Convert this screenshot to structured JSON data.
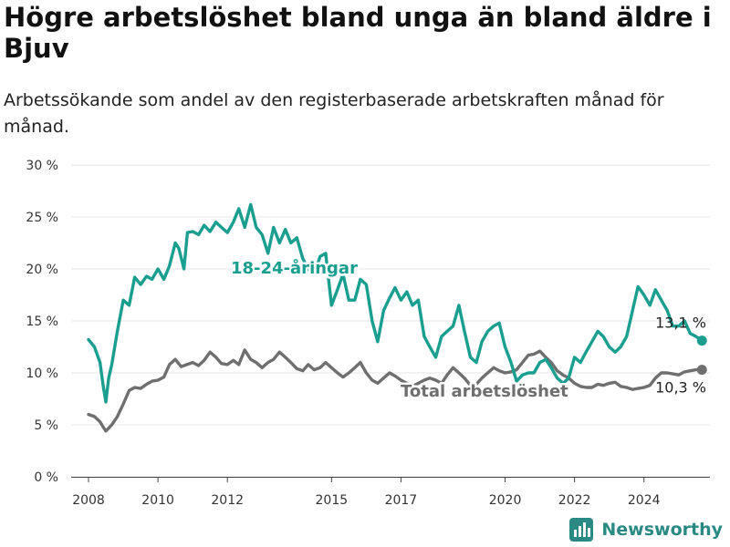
{
  "title": "Högre arbetslöshet bland unga än bland äldre i Bjuv",
  "subtitle": "Arbetssökande som andel av den registerbaserade arbetskraften månad för månad.",
  "brand": "Newsworthy",
  "colors": {
    "youth": "#1a9e8f",
    "total": "#6f6f6f",
    "brand": "#2a8a83"
  },
  "chart_data": {
    "type": "line",
    "ylim": [
      0,
      30
    ],
    "xlim": [
      2007.5,
      2025.9
    ],
    "yticks": [
      0,
      5,
      10,
      15,
      20,
      25,
      30
    ],
    "ytick_labels": [
      "0 %",
      "5 %",
      "10 %",
      "15 %",
      "20 %",
      "25 %",
      "30 %"
    ],
    "xticks": [
      2008,
      2010,
      2012,
      2015,
      2017,
      2020,
      2022,
      2024
    ],
    "xtick_labels": [
      "2008",
      "2010",
      "2012",
      "2015",
      "2017",
      "2020",
      "2022",
      "2024"
    ],
    "grid": true,
    "series": [
      {
        "name": "18-24-åringar",
        "color": "#1a9e8f",
        "end_label": "13,1 %",
        "points": [
          [
            2008.0,
            13.2
          ],
          [
            2008.17,
            12.5
          ],
          [
            2008.33,
            11.0
          ],
          [
            2008.42,
            8.8
          ],
          [
            2008.5,
            7.2
          ],
          [
            2008.58,
            9.5
          ],
          [
            2008.67,
            10.8
          ],
          [
            2008.83,
            14.0
          ],
          [
            2009.0,
            17.0
          ],
          [
            2009.17,
            16.5
          ],
          [
            2009.33,
            19.2
          ],
          [
            2009.5,
            18.5
          ],
          [
            2009.67,
            19.3
          ],
          [
            2009.83,
            19.0
          ],
          [
            2010.0,
            20.0
          ],
          [
            2010.17,
            19.0
          ],
          [
            2010.33,
            20.3
          ],
          [
            2010.5,
            22.5
          ],
          [
            2010.6,
            22.0
          ],
          [
            2010.75,
            20.0
          ],
          [
            2010.85,
            23.5
          ],
          [
            2011.0,
            23.6
          ],
          [
            2011.17,
            23.3
          ],
          [
            2011.33,
            24.2
          ],
          [
            2011.5,
            23.6
          ],
          [
            2011.67,
            24.5
          ],
          [
            2011.83,
            24.0
          ],
          [
            2012.0,
            23.5
          ],
          [
            2012.17,
            24.5
          ],
          [
            2012.33,
            25.8
          ],
          [
            2012.5,
            24.0
          ],
          [
            2012.67,
            26.2
          ],
          [
            2012.83,
            24.0
          ],
          [
            2013.0,
            23.3
          ],
          [
            2013.17,
            21.5
          ],
          [
            2013.33,
            24.0
          ],
          [
            2013.5,
            22.5
          ],
          [
            2013.67,
            23.8
          ],
          [
            2013.83,
            22.5
          ],
          [
            2014.0,
            23.0
          ],
          [
            2014.17,
            21.0
          ],
          [
            2014.33,
            20.0
          ],
          [
            2014.5,
            19.5
          ],
          [
            2014.67,
            21.2
          ],
          [
            2014.83,
            21.5
          ],
          [
            2015.0,
            16.5
          ],
          [
            2015.17,
            18.0
          ],
          [
            2015.33,
            19.5
          ],
          [
            2015.5,
            17.0
          ],
          [
            2015.67,
            17.0
          ],
          [
            2015.83,
            19.0
          ],
          [
            2016.0,
            18.5
          ],
          [
            2016.17,
            15.0
          ],
          [
            2016.33,
            13.0
          ],
          [
            2016.5,
            16.0
          ],
          [
            2016.67,
            17.2
          ],
          [
            2016.83,
            18.2
          ],
          [
            2017.0,
            17.0
          ],
          [
            2017.17,
            17.8
          ],
          [
            2017.33,
            16.5
          ],
          [
            2017.5,
            17.0
          ],
          [
            2017.67,
            13.5
          ],
          [
            2017.83,
            12.5
          ],
          [
            2018.0,
            11.5
          ],
          [
            2018.17,
            13.5
          ],
          [
            2018.33,
            14.0
          ],
          [
            2018.5,
            14.5
          ],
          [
            2018.67,
            16.5
          ],
          [
            2018.83,
            14.0
          ],
          [
            2019.0,
            11.5
          ],
          [
            2019.17,
            11.0
          ],
          [
            2019.33,
            13.0
          ],
          [
            2019.5,
            14.0
          ],
          [
            2019.67,
            14.5
          ],
          [
            2019.83,
            14.8
          ],
          [
            2020.0,
            12.5
          ],
          [
            2020.17,
            11.0
          ],
          [
            2020.33,
            9.2
          ],
          [
            2020.5,
            9.8
          ],
          [
            2020.67,
            10.0
          ],
          [
            2020.83,
            10.0
          ],
          [
            2021.0,
            11.0
          ],
          [
            2021.17,
            11.3
          ],
          [
            2021.33,
            10.5
          ],
          [
            2021.5,
            9.5
          ],
          [
            2021.67,
            9.0
          ],
          [
            2021.83,
            9.5
          ],
          [
            2022.0,
            11.5
          ],
          [
            2022.17,
            11.0
          ],
          [
            2022.33,
            12.0
          ],
          [
            2022.5,
            13.0
          ],
          [
            2022.67,
            14.0
          ],
          [
            2022.83,
            13.5
          ],
          [
            2023.0,
            12.5
          ],
          [
            2023.17,
            12.0
          ],
          [
            2023.33,
            12.5
          ],
          [
            2023.5,
            13.5
          ],
          [
            2023.67,
            16.0
          ],
          [
            2023.83,
            18.3
          ],
          [
            2024.0,
            17.5
          ],
          [
            2024.17,
            16.5
          ],
          [
            2024.33,
            18.0
          ],
          [
            2024.5,
            17.0
          ],
          [
            2024.67,
            16.0
          ],
          [
            2024.83,
            14.5
          ],
          [
            2025.0,
            14.5
          ],
          [
            2025.17,
            15.0
          ],
          [
            2025.33,
            13.8
          ],
          [
            2025.5,
            13.5
          ],
          [
            2025.67,
            13.1
          ]
        ]
      },
      {
        "name": "Total arbetslöshet",
        "color": "#6f6f6f",
        "end_label": "10,3 %",
        "points": [
          [
            2008.0,
            6.0
          ],
          [
            2008.17,
            5.8
          ],
          [
            2008.33,
            5.3
          ],
          [
            2008.42,
            4.8
          ],
          [
            2008.5,
            4.4
          ],
          [
            2008.67,
            5.0
          ],
          [
            2008.83,
            5.8
          ],
          [
            2009.0,
            7.0
          ],
          [
            2009.17,
            8.3
          ],
          [
            2009.33,
            8.6
          ],
          [
            2009.5,
            8.5
          ],
          [
            2009.67,
            8.9
          ],
          [
            2009.83,
            9.2
          ],
          [
            2010.0,
            9.3
          ],
          [
            2010.17,
            9.6
          ],
          [
            2010.33,
            10.8
          ],
          [
            2010.5,
            11.3
          ],
          [
            2010.67,
            10.6
          ],
          [
            2010.83,
            10.8
          ],
          [
            2011.0,
            11.0
          ],
          [
            2011.17,
            10.7
          ],
          [
            2011.33,
            11.2
          ],
          [
            2011.5,
            12.0
          ],
          [
            2011.67,
            11.5
          ],
          [
            2011.83,
            10.9
          ],
          [
            2012.0,
            10.8
          ],
          [
            2012.17,
            11.2
          ],
          [
            2012.33,
            10.8
          ],
          [
            2012.5,
            12.2
          ],
          [
            2012.67,
            11.3
          ],
          [
            2012.83,
            11.0
          ],
          [
            2013.0,
            10.5
          ],
          [
            2013.17,
            11.0
          ],
          [
            2013.33,
            11.3
          ],
          [
            2013.5,
            12.0
          ],
          [
            2013.67,
            11.5
          ],
          [
            2013.83,
            11.0
          ],
          [
            2014.0,
            10.4
          ],
          [
            2014.17,
            10.2
          ],
          [
            2014.33,
            10.8
          ],
          [
            2014.5,
            10.3
          ],
          [
            2014.67,
            10.5
          ],
          [
            2014.83,
            11.0
          ],
          [
            2015.0,
            10.5
          ],
          [
            2015.17,
            10.0
          ],
          [
            2015.33,
            9.6
          ],
          [
            2015.5,
            10.0
          ],
          [
            2015.67,
            10.5
          ],
          [
            2015.83,
            11.0
          ],
          [
            2016.0,
            10.0
          ],
          [
            2016.17,
            9.3
          ],
          [
            2016.33,
            9.0
          ],
          [
            2016.5,
            9.5
          ],
          [
            2016.67,
            10.0
          ],
          [
            2016.83,
            9.7
          ],
          [
            2017.0,
            9.3
          ],
          [
            2017.17,
            9.0
          ],
          [
            2017.33,
            8.7
          ],
          [
            2017.5,
            9.0
          ],
          [
            2017.67,
            9.3
          ],
          [
            2017.83,
            9.5
          ],
          [
            2018.0,
            9.3
          ],
          [
            2018.17,
            9.0
          ],
          [
            2018.33,
            9.8
          ],
          [
            2018.5,
            10.5
          ],
          [
            2018.67,
            10.0
          ],
          [
            2018.83,
            9.5
          ],
          [
            2019.0,
            8.8
          ],
          [
            2019.17,
            8.9
          ],
          [
            2019.33,
            9.5
          ],
          [
            2019.5,
            10.0
          ],
          [
            2019.67,
            10.5
          ],
          [
            2019.83,
            10.2
          ],
          [
            2020.0,
            10.0
          ],
          [
            2020.17,
            10.1
          ],
          [
            2020.33,
            10.3
          ],
          [
            2020.5,
            11.0
          ],
          [
            2020.67,
            11.7
          ],
          [
            2020.83,
            11.8
          ],
          [
            2021.0,
            12.1
          ],
          [
            2021.17,
            11.5
          ],
          [
            2021.33,
            11.0
          ],
          [
            2021.5,
            10.2
          ],
          [
            2021.67,
            9.8
          ],
          [
            2021.83,
            9.5
          ],
          [
            2022.0,
            9.0
          ],
          [
            2022.17,
            8.7
          ],
          [
            2022.33,
            8.6
          ],
          [
            2022.5,
            8.6
          ],
          [
            2022.67,
            8.9
          ],
          [
            2022.83,
            8.8
          ],
          [
            2023.0,
            9.0
          ],
          [
            2023.17,
            9.1
          ],
          [
            2023.33,
            8.7
          ],
          [
            2023.5,
            8.6
          ],
          [
            2023.67,
            8.4
          ],
          [
            2023.83,
            8.5
          ],
          [
            2024.0,
            8.6
          ],
          [
            2024.17,
            8.8
          ],
          [
            2024.33,
            9.5
          ],
          [
            2024.5,
            10.0
          ],
          [
            2024.67,
            10.0
          ],
          [
            2024.83,
            9.9
          ],
          [
            2025.0,
            9.8
          ],
          [
            2025.17,
            10.1
          ],
          [
            2025.33,
            10.2
          ],
          [
            2025.5,
            10.3
          ],
          [
            2025.67,
            10.3
          ]
        ]
      }
    ]
  }
}
